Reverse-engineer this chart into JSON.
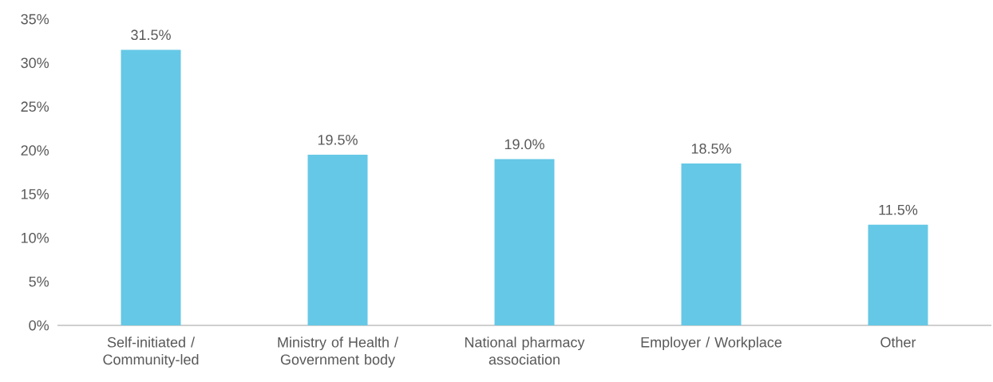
{
  "chart_data": {
    "type": "bar",
    "categories": [
      "Self-initiated / Community-led",
      "Ministry of Health / Government body",
      "National pharmacy association",
      "Employer / Workplace",
      "Other"
    ],
    "values": [
      31.5,
      19.5,
      19.0,
      18.5,
      11.5
    ],
    "value_labels": [
      "31.5%",
      "19.5%",
      "19.0%",
      "18.5%",
      "11.5%"
    ],
    "color": "#65c8e6",
    "ylim": [
      0,
      35
    ],
    "yticks": [
      {
        "value": 0,
        "label": "0%"
      },
      {
        "value": 5,
        "label": "5%"
      },
      {
        "value": 10,
        "label": "10%"
      },
      {
        "value": 15,
        "label": "15%"
      },
      {
        "value": 20,
        "label": "20%"
      },
      {
        "value": 25,
        "label": "25%"
      },
      {
        "value": 30,
        "label": "30%"
      },
      {
        "value": 35,
        "label": "35%"
      }
    ]
  }
}
